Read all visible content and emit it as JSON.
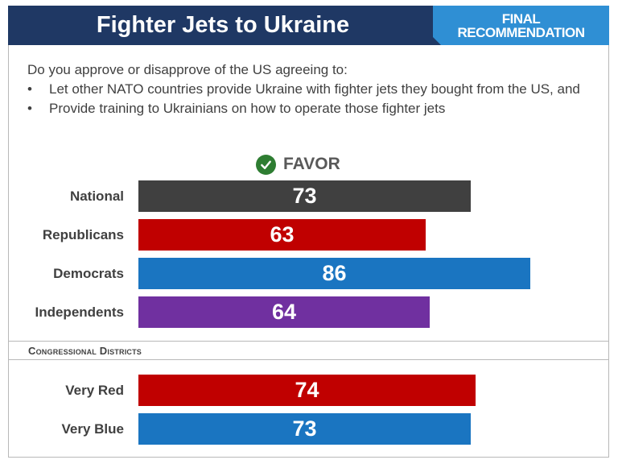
{
  "header": {
    "title": "Fighter Jets to Ukraine",
    "badge_line1": "FINAL",
    "badge_line2": "RECOMMENDATION"
  },
  "question": {
    "intro": "Do you approve or disapprove of the US agreeing to:",
    "bullets": [
      "Let other NATO countries provide Ukraine with fighter jets they bought from the US, and",
      "Provide training to Ukrainians on how to operate those fighter jets"
    ]
  },
  "favor_label": "FAVOR",
  "section_label": "Congressional Districts",
  "colors": {
    "title_bg": "#1f3864",
    "badge_bg": "#2f8fd4",
    "national": "#404040",
    "republicans": "#c00000",
    "democrats": "#1a75c1",
    "independents": "#7030a0",
    "check": "#2e7d32"
  },
  "chart_data": {
    "type": "bar",
    "orientation": "horizontal",
    "title": "FAVOR",
    "xlim": [
      0,
      100
    ],
    "groups": [
      {
        "name": "",
        "categories": [
          "National",
          "Republicans",
          "Democrats",
          "Independents"
        ],
        "values": [
          73,
          63,
          86,
          64
        ],
        "colors": [
          "#404040",
          "#c00000",
          "#1a75c1",
          "#7030a0"
        ]
      },
      {
        "name": "Congressional Districts",
        "categories": [
          "Very Red",
          "Very Blue"
        ],
        "values": [
          74,
          73
        ],
        "colors": [
          "#c00000",
          "#1a75c1"
        ]
      }
    ]
  }
}
